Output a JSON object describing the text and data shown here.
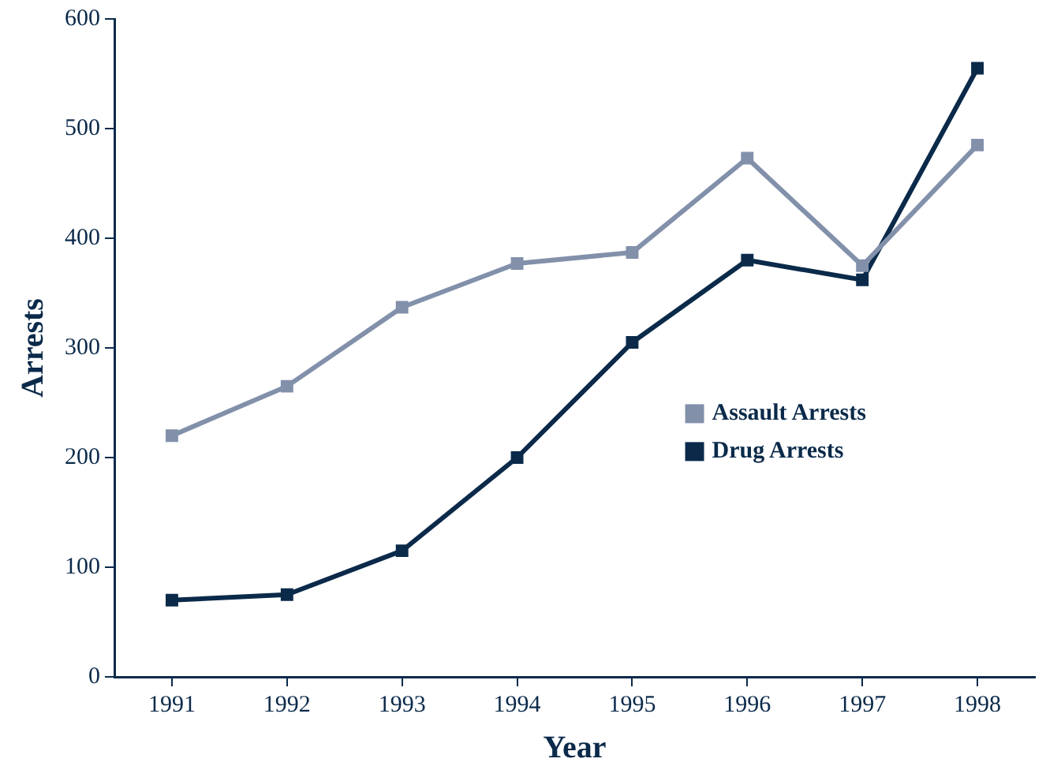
{
  "chart_data": {
    "type": "line",
    "xlabel": "Year",
    "ylabel": "Arrests",
    "categories": [
      "1991",
      "1992",
      "1993",
      "1994",
      "1995",
      "1996",
      "1997",
      "1998"
    ],
    "series": [
      {
        "name": "Assault Arrests",
        "color": "#8290aa",
        "values": [
          220,
          265,
          337,
          377,
          387,
          473,
          375,
          485
        ]
      },
      {
        "name": "Drug Arrests",
        "color": "#0b2a4a",
        "values": [
          70,
          75,
          115,
          200,
          305,
          380,
          362,
          555
        ]
      }
    ],
    "ylim": [
      0,
      600
    ],
    "yticks": [
      0,
      100,
      200,
      300,
      400,
      500,
      600
    ],
    "grid": false,
    "legend": "right",
    "marker": "square",
    "line_style": "solid"
  }
}
